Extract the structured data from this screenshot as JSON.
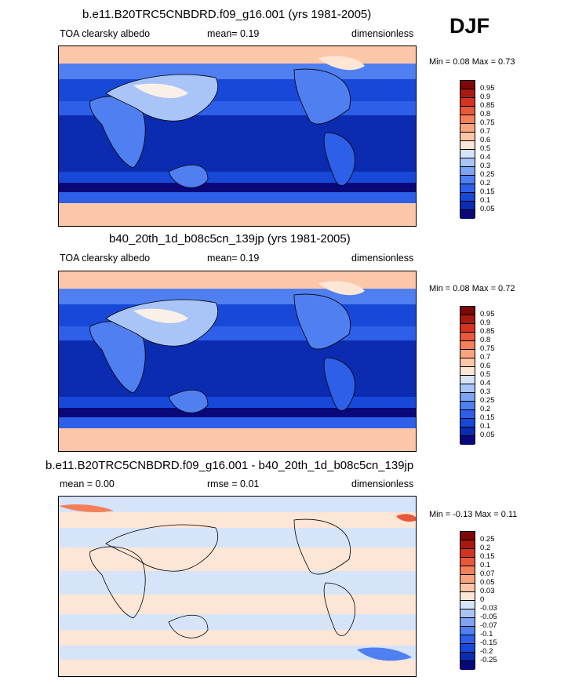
{
  "season": "DJF",
  "colors": {
    "abs": [
      "#08087a",
      "#0b2cb0",
      "#1748d8",
      "#2e5fe8",
      "#4f7ff0",
      "#7ea3f4",
      "#a9c4f7",
      "#d6e4fa",
      "#fde6d6",
      "#fcc7a8",
      "#f9a47e",
      "#f47f59",
      "#e9583b",
      "#d13520",
      "#a81a10",
      "#7c0808"
    ],
    "diff": [
      "#08087a",
      "#0b2cb0",
      "#1748d8",
      "#2e5fe8",
      "#4f7ff0",
      "#7ea3f4",
      "#a9c4f7",
      "#d6e4fa",
      "#fde6d6",
      "#fcc7a8",
      "#f9a47e",
      "#f47f59",
      "#e9583b",
      "#d13520",
      "#a81a10",
      "#7c0808"
    ]
  },
  "panels": [
    {
      "title": "b.e11.B20TRC5CNBDRD.f09_g16.001 (yrs 1981-2005)",
      "left_label": "TOA clearsky albedo",
      "mid_label": "mean=  0.19",
      "right_label": "dimensionless",
      "minmax": "Min =  0.08 Max =   0.73",
      "levels": [
        "0.95",
        "0.9",
        "0.85",
        "0.8",
        "0.75",
        "0.7",
        "0.6",
        "0.5",
        "0.4",
        "0.3",
        "0.25",
        "0.2",
        "0.15",
        "0.1",
        "0.05"
      ]
    },
    {
      "title": "b40_20th_1d_b08c5cn_139jp (yrs 1981-2005)",
      "left_label": "TOA clearsky albedo",
      "mid_label": "mean=  0.19",
      "right_label": "dimensionless",
      "minmax": "Min =  0.08 Max =   0.72",
      "levels": [
        "0.95",
        "0.9",
        "0.85",
        "0.8",
        "0.75",
        "0.7",
        "0.6",
        "0.5",
        "0.4",
        "0.3",
        "0.25",
        "0.2",
        "0.15",
        "0.1",
        "0.05"
      ]
    },
    {
      "title": "b.e11.B20TRC5CNBDRD.f09_g16.001 - b40_20th_1d_b08c5cn_139jp",
      "left_label": "mean =   0.00",
      "mid_label": "rmse =  0.01",
      "right_label": "dimensionless",
      "minmax": "Min =  -0.13 Max =   0.11",
      "levels": [
        "0.25",
        "0.2",
        "0.15",
        "0.1",
        "0.07",
        "0.05",
        "0.03",
        "0",
        "-0.03",
        "-0.05",
        "-0.07",
        "-0.1",
        "-0.15",
        "-0.2",
        "-0.25"
      ]
    }
  ]
}
